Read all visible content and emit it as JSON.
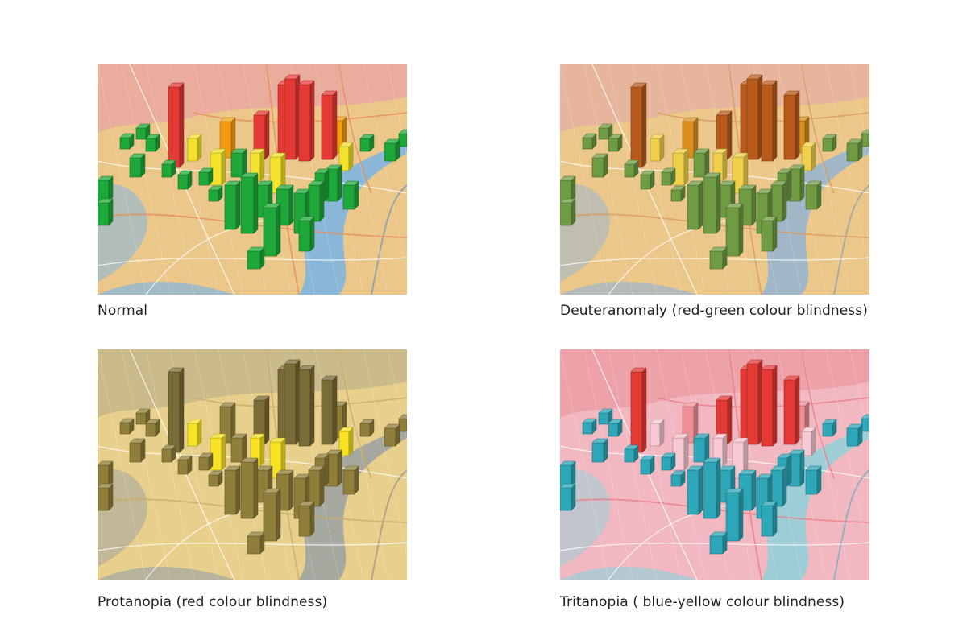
{
  "panels": [
    {
      "caption": "Normal",
      "colors": {
        "base": "#ecc78a",
        "top": "#e9a7a0",
        "river": "#8ab7d8",
        "water_ink": "#5f90bf",
        "road": "#e48f5a",
        "high": "#e53935",
        "mid_high": "#f39c12",
        "mid": "#f2e22b",
        "low": "#1fa83a"
      }
    },
    {
      "caption": "Deuteranomaly (red-green colour blindness)",
      "colors": {
        "base": "#ecc78a",
        "top": "#e6b1a0",
        "river": "#a1b7c8",
        "water_ink": "#7f97ac",
        "road": "#d99a62",
        "high": "#b85a1c",
        "mid_high": "#d98f1e",
        "mid": "#f0d04a",
        "low": "#6f9b43"
      }
    },
    {
      "caption": "Protanopia (red colour blindness)",
      "colors": {
        "base": "#e8d08c",
        "top": "#c5b78a",
        "river": "#a6a8a0",
        "water_ink": "#8a8b80",
        "road": "#c7ad66",
        "high": "#7a6c36",
        "mid_high": "#8e7f3a",
        "mid": "#f7e324",
        "low": "#8f7f3a"
      }
    },
    {
      "caption": "Tritanopia ( blue-yellow colour blindness)",
      "colors": {
        "base": "#f2b8c2",
        "top": "#ec9ea5",
        "river": "#9fcdd6",
        "water_ink": "#5aa8b6",
        "road": "#e9818a",
        "high": "#e53935",
        "mid_high": "#ee8f95",
        "mid": "#f7c9d2",
        "low": "#2ea7b8"
      }
    }
  ]
}
